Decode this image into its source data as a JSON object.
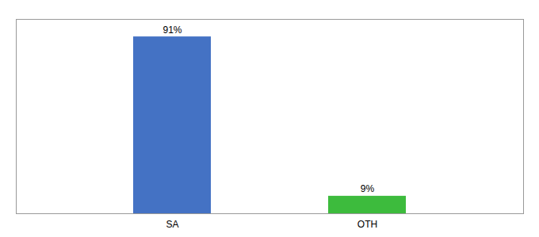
{
  "chart_data": {
    "type": "bar",
    "categories": [
      "SA",
      "OTH"
    ],
    "values": [
      91,
      9
    ],
    "value_labels": [
      "91%",
      "9%"
    ],
    "colors": [
      "#4472c4",
      "#3dbb3d"
    ],
    "ylim": [
      0,
      100
    ],
    "data_labels": true,
    "tick_labels": "x"
  }
}
